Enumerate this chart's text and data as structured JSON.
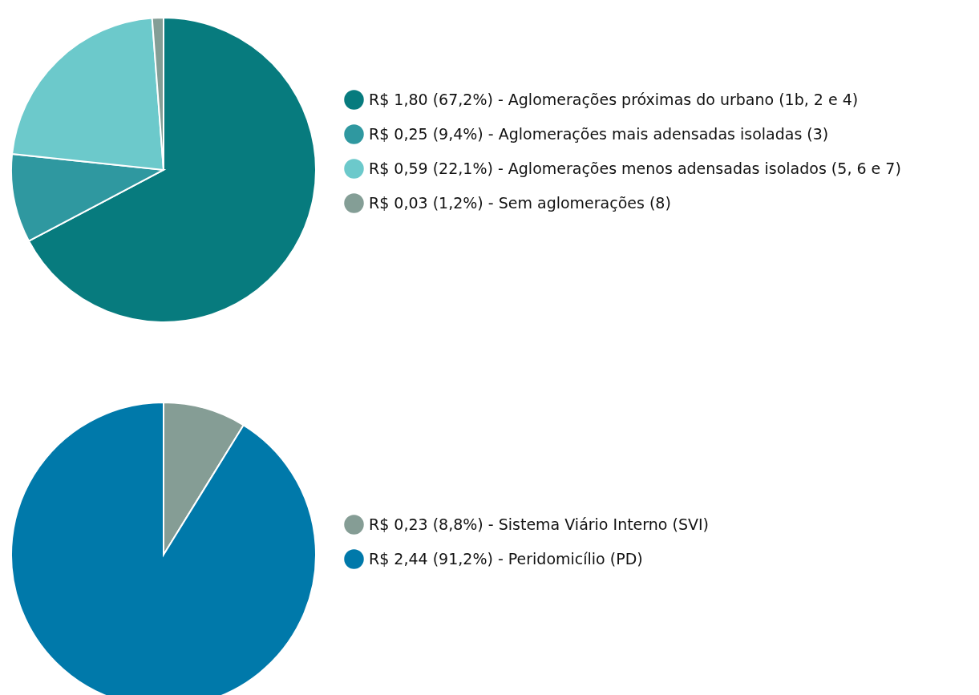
{
  "chart_data": [
    {
      "type": "pie",
      "categories": [
        "R$ 1,80 (67,2%) - Aglomerações próximas do urbano (1b, 2 e 4)",
        "R$ 0,25 (9,4%) - Aglomerações mais adensadas isoladas (3)",
        "R$ 0,59 (22,1%) - Aglomerações menos adensadas isolados (5, 6 e 7)",
        "R$ 0,03 (1,2%) - Sem aglomerações (8)"
      ],
      "values": [
        67.2,
        9.4,
        22.1,
        1.2
      ],
      "colors": [
        "#077b7e",
        "#2f98a0",
        "#6cc9cb",
        "#849e96"
      ],
      "legend": "right"
    },
    {
      "type": "pie",
      "categories": [
        "R$ 0,23 (8,8%) - Sistema Viário Interno (SVI)",
        "R$ 2,44 (91,2%) - Peridomicílio (PD)"
      ],
      "values": [
        8.8,
        91.2
      ],
      "colors": [
        "#859d95",
        "#0079aa"
      ],
      "legend": "right"
    }
  ]
}
